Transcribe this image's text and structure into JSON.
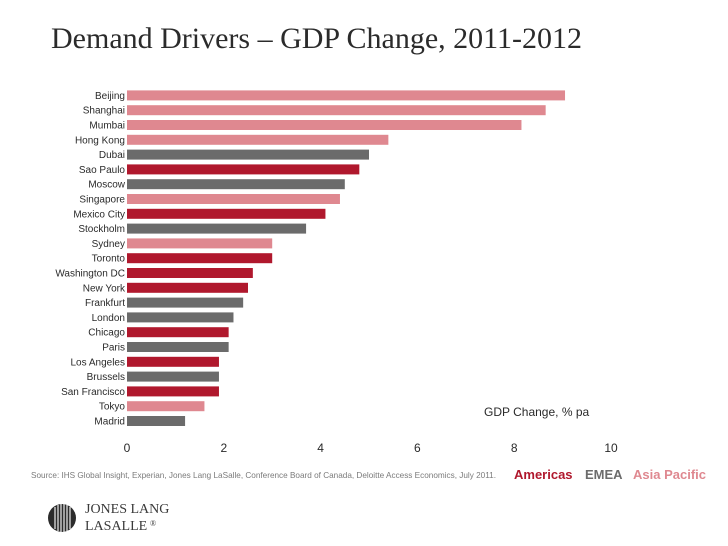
{
  "header": {
    "title": "Demand Drivers – GDP Change, 2011-2012"
  },
  "chart_data": {
    "type": "bar",
    "orientation": "horizontal",
    "categories": [
      "Beijing",
      "Shanghai",
      "Mumbai",
      "Hong Kong",
      "Dubai",
      "Sao Paulo",
      "Moscow",
      "Singapore",
      "Mexico City",
      "Stockholm",
      "Sydney",
      "Toronto",
      "Washington DC",
      "New York",
      "Frankfurt",
      "London",
      "Chicago",
      "Paris",
      "Los Angeles",
      "Brussels",
      "San Francisco",
      "Tokyo",
      "Madrid"
    ],
    "values": [
      9.05,
      8.65,
      8.15,
      5.4,
      5.0,
      4.8,
      4.5,
      4.4,
      4.1,
      3.7,
      3.0,
      3.0,
      2.6,
      2.5,
      2.4,
      2.2,
      2.1,
      2.1,
      1.9,
      1.9,
      1.9,
      1.6,
      1.2
    ],
    "regions": [
      "Asia Pacific",
      "Asia Pacific",
      "Asia Pacific",
      "Asia Pacific",
      "EMEA",
      "Americas",
      "EMEA",
      "Asia Pacific",
      "Americas",
      "EMEA",
      "Asia Pacific",
      "Americas",
      "Americas",
      "Americas",
      "EMEA",
      "EMEA",
      "Americas",
      "EMEA",
      "Americas",
      "EMEA",
      "Americas",
      "Asia Pacific",
      "EMEA"
    ],
    "xlabel": "GDP Change, % pa",
    "xlim": [
      0,
      10
    ],
    "xticks": [
      0,
      2,
      4,
      6,
      8,
      10
    ],
    "legend_position": "bottom-right",
    "colors": {
      "Americas": "#b0182d",
      "EMEA": "#6b6b6b",
      "Asia Pacific": "#df8890"
    }
  },
  "source_note": "Source: IHS Global Insight, Experian, Jones Lang LaSalle, Conference Board of Canada, Deloitte Access Economics, July 2011.",
  "legend": [
    {
      "label": "Americas",
      "color": "#b0182d"
    },
    {
      "label": "EMEA",
      "color": "#6b6b6b"
    },
    {
      "label": "Asia Pacific",
      "color": "#df8890"
    }
  ],
  "logo": {
    "line1": "JONES LANG",
    "line2": "LASALLE",
    "mark": "®"
  }
}
